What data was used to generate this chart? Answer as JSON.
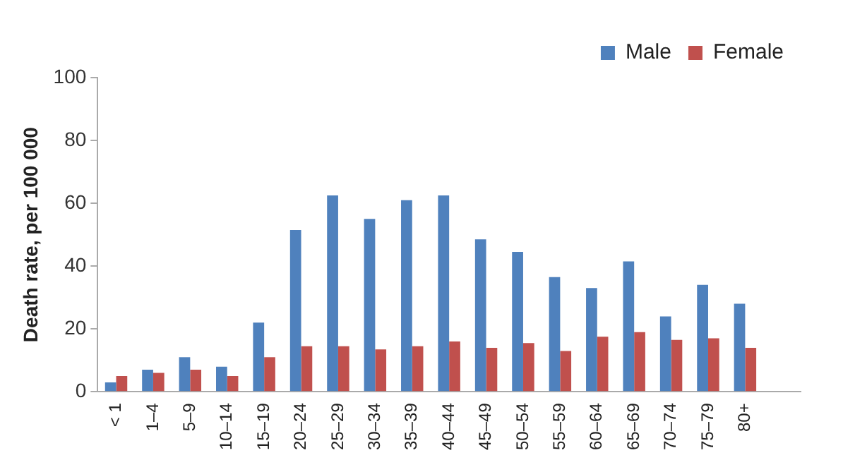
{
  "chart_data": {
    "type": "bar",
    "ylabel": "Death rate, per 100 000",
    "categories": [
      "< 1",
      "1–4",
      "5–9",
      "10–14",
      "15–19",
      "20–24",
      "25–29",
      "30–34",
      "35–39",
      "40–44",
      "45–49",
      "50–54",
      "55–59",
      "60–64",
      "65–69",
      "70–74",
      "75–79",
      "80+",
      null
    ],
    "series": [
      {
        "name": "Male",
        "color": "#4f81bd",
        "values": [
          3,
          7,
          11,
          8,
          22,
          51.5,
          62.5,
          55,
          61,
          62.5,
          48.5,
          44.5,
          36.5,
          33,
          41.5,
          24,
          34,
          28,
          null
        ]
      },
      {
        "name": "Female",
        "color": "#c0504d",
        "values": [
          5,
          6,
          7,
          5,
          11,
          14.5,
          14.5,
          13.5,
          14.5,
          16,
          14,
          15.5,
          13,
          17.5,
          19,
          16.5,
          17,
          14,
          null
        ]
      }
    ],
    "ylim": [
      0,
      100
    ],
    "yticks": [
      0,
      20,
      40,
      60,
      80,
      100
    ],
    "grid": false,
    "legend": "top right"
  }
}
